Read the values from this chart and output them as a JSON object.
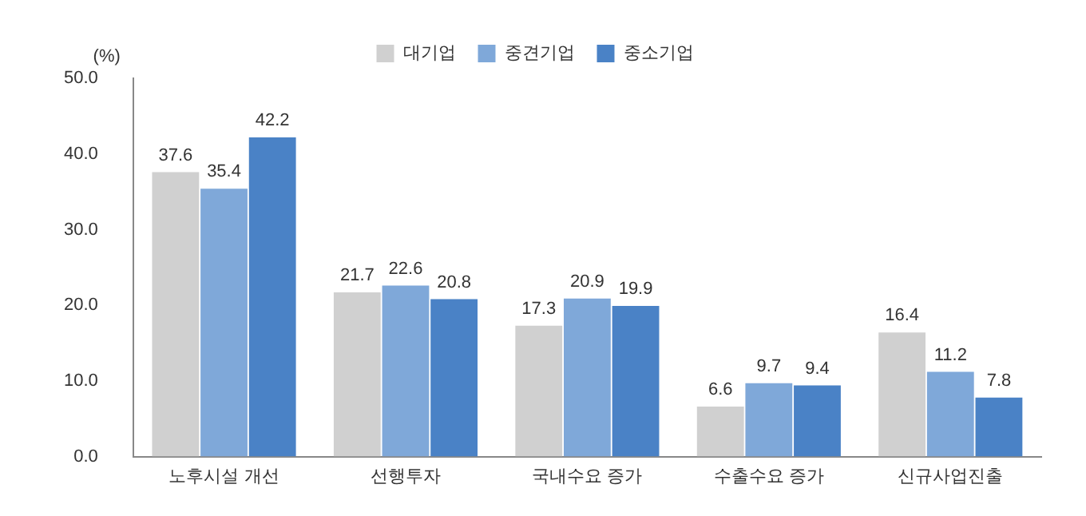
{
  "chart_data": {
    "type": "bar",
    "ylabel": "(%)",
    "categories": [
      "노후시설 개선",
      "선행투자",
      "국내수요 증가",
      "수출수요 증가",
      "신규사업진출"
    ],
    "series": [
      {
        "name": "대기업",
        "color": "#d0d0d0",
        "values": [
          37.6,
          21.7,
          17.3,
          6.6,
          16.4
        ]
      },
      {
        "name": "중견기업",
        "color": "#7fa8d9",
        "values": [
          35.4,
          22.6,
          20.9,
          9.7,
          11.2
        ]
      },
      {
        "name": "중소기업",
        "color": "#4a82c6",
        "values": [
          42.2,
          20.8,
          19.9,
          9.4,
          7.8
        ]
      }
    ],
    "ylim": [
      0,
      50
    ],
    "yticks": [
      {
        "value": 0,
        "label": "0.0"
      },
      {
        "value": 10,
        "label": "10.0"
      },
      {
        "value": 20,
        "label": "20.0"
      },
      {
        "value": 30,
        "label": "30.0"
      },
      {
        "value": 40,
        "label": "40.0"
      },
      {
        "value": 50,
        "label": "50.0"
      }
    ],
    "grid": false,
    "legend": "top",
    "data_labels": true
  }
}
